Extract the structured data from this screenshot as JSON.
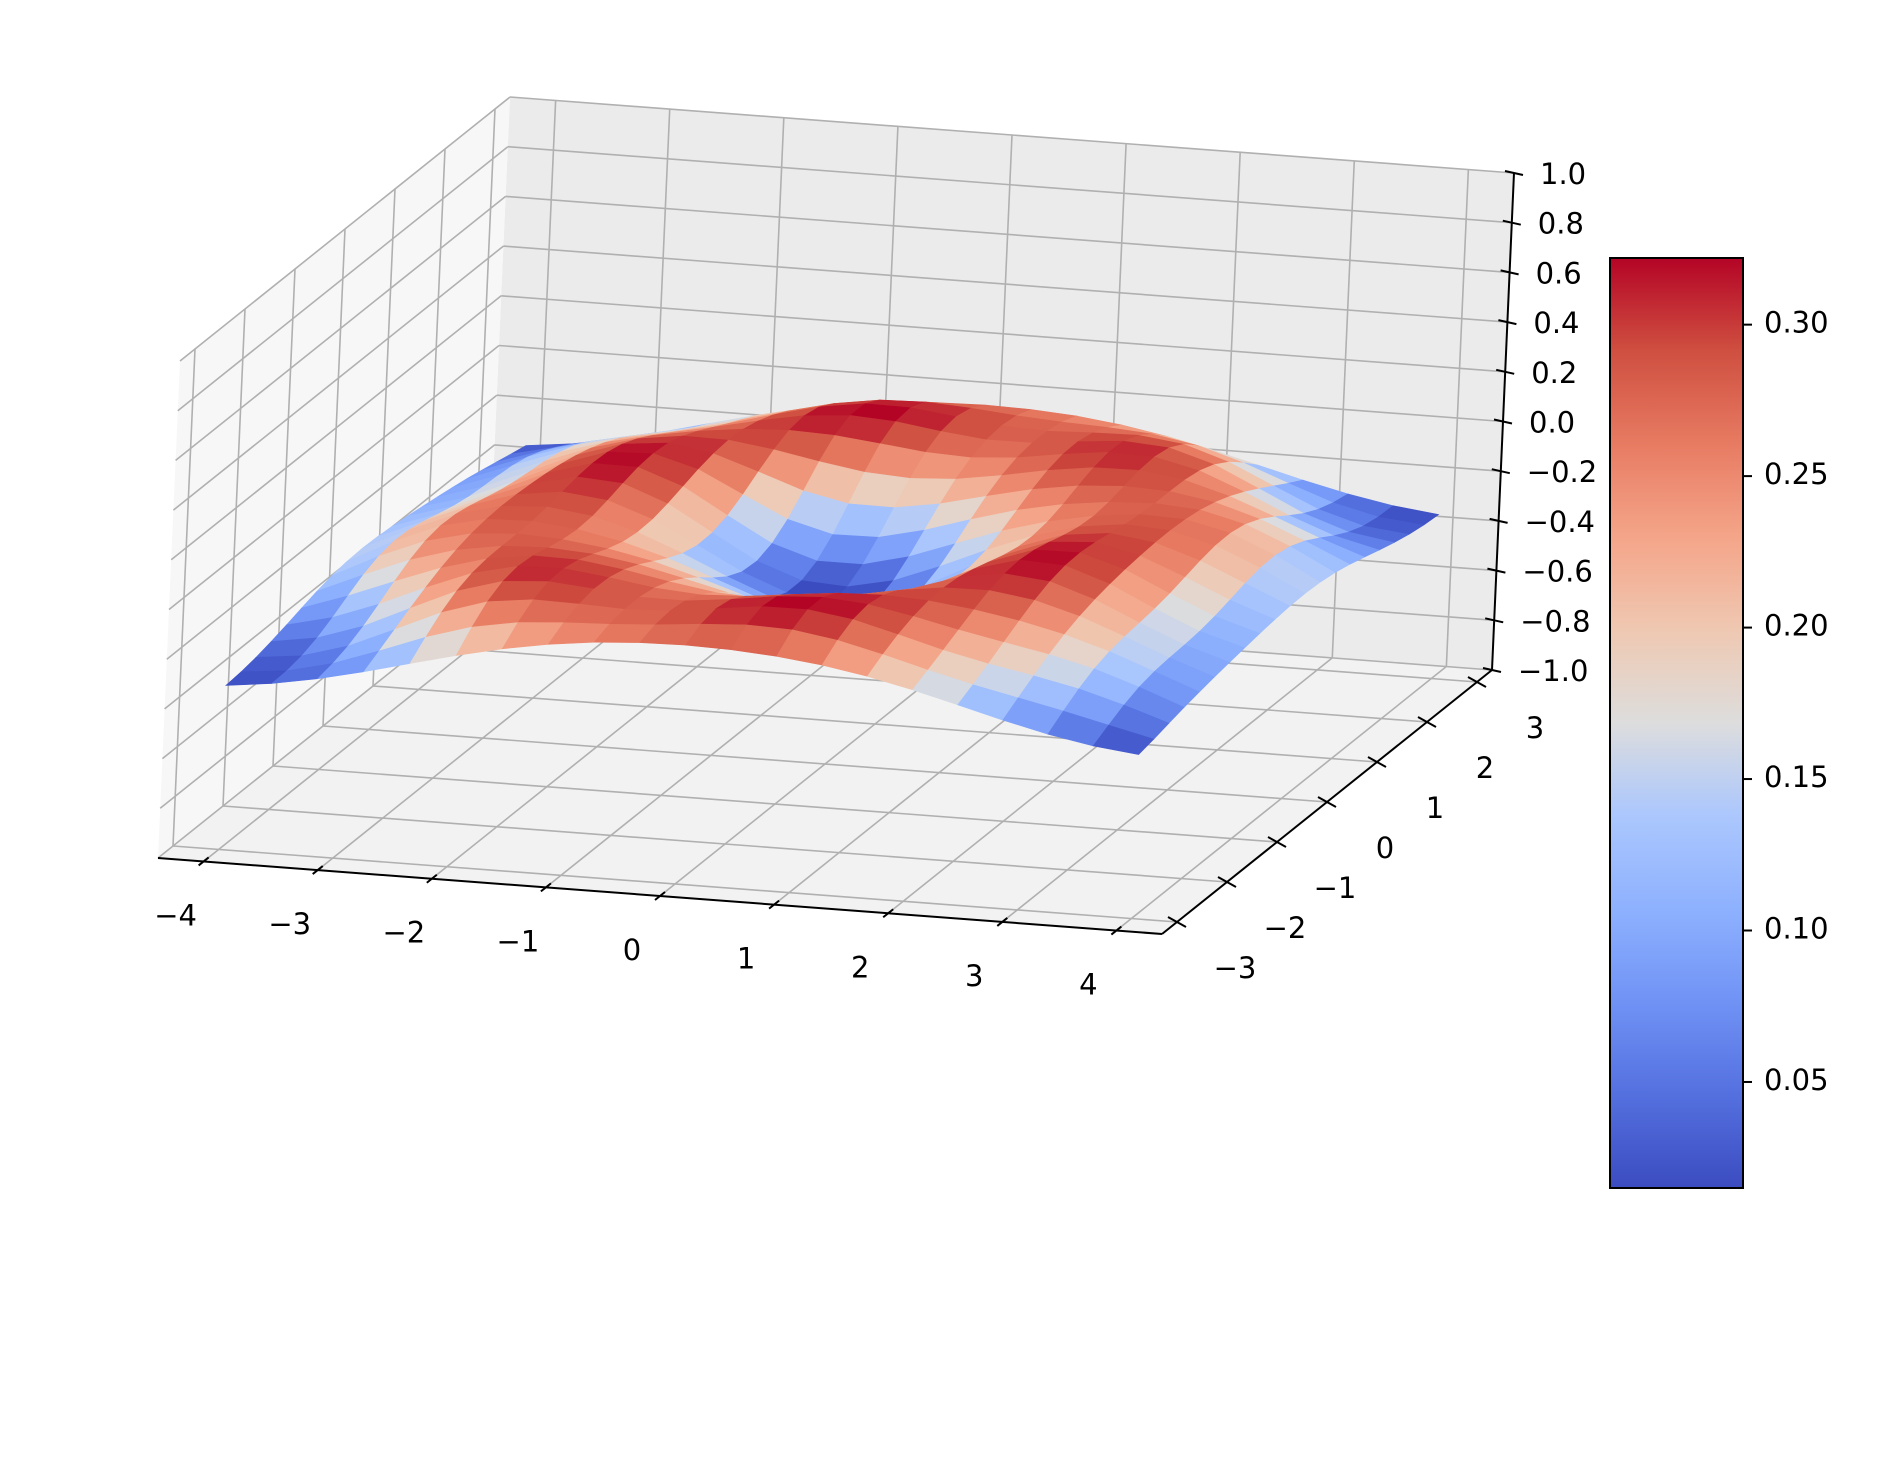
{
  "chart_data": {
    "type": "surface3d",
    "title": "",
    "xlabel": "",
    "ylabel": "",
    "zlabel": "",
    "xlim": [
      -4.4,
      4.4
    ],
    "ylim": [
      -3.3,
      3.3
    ],
    "zlim": [
      -1.0,
      1.0
    ],
    "x_ticks": [
      "−4",
      "−3",
      "−2",
      "−1",
      "0",
      "1",
      "2",
      "3",
      "4"
    ],
    "y_ticks": [
      "−3",
      "−2",
      "−1",
      "0",
      "1",
      "2",
      "3"
    ],
    "z_ticks": [
      "−1.0",
      "−0.8",
      "−0.6",
      "−0.4",
      "−0.2",
      "0.0",
      "0.2",
      "0.4",
      "0.6",
      "0.8",
      "1.0"
    ],
    "x_tick_values": [
      -4,
      -3,
      -2,
      -1,
      0,
      1,
      2,
      3,
      4
    ],
    "y_tick_values": [
      -3,
      -2,
      -1,
      0,
      1,
      2,
      3
    ],
    "z_tick_values": [
      -1.0,
      -0.8,
      -0.6,
      -0.4,
      -0.2,
      0.0,
      0.2,
      0.4,
      0.6,
      0.8,
      1.0
    ],
    "surface": {
      "x_range": [
        -4.0,
        4.0
      ],
      "y_range": [
        -3.0,
        3.0
      ],
      "x_steps": 20,
      "y_steps": 20,
      "z_min": -0.35,
      "z_max": 0.15
    },
    "colorbar": {
      "colormap": "coolwarm",
      "range": [
        0.015,
        0.322
      ],
      "ticks": [
        "0.05",
        "0.10",
        "0.15",
        "0.20",
        "0.25",
        "0.30"
      ],
      "tick_values": [
        0.05,
        0.1,
        0.15,
        0.2,
        0.25,
        0.3
      ]
    },
    "grid": true,
    "pane_colors": [
      "#f2f2f2",
      "#ebebeb",
      "#f7f7f7"
    ],
    "grid_color": "#b0b0b0"
  }
}
